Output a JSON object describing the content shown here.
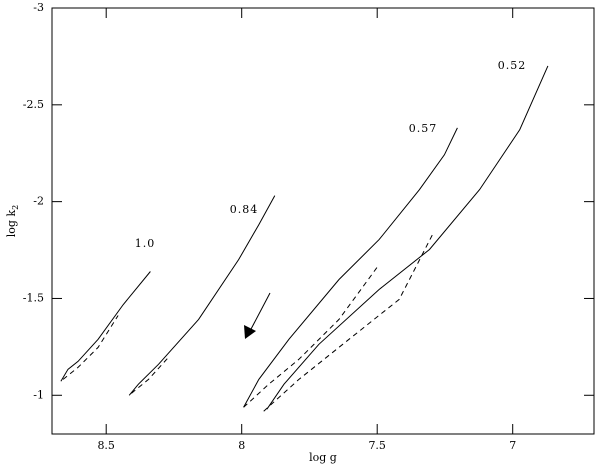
{
  "chart_data": {
    "type": "line",
    "xlabel": "log g",
    "ylabel": "log k",
    "ylabel_subscript": "2",
    "xlim": [
      8.7,
      6.7
    ],
    "ylim": [
      -0.8,
      -3
    ],
    "xticks": [
      8.5,
      8,
      7.5,
      7
    ],
    "yticks": [
      -1,
      -1.5,
      -2,
      -2.5,
      -3
    ],
    "color": "#000000",
    "series": [
      {
        "style": "solid",
        "x": [
          8.667,
          8.641,
          8.604,
          8.53,
          8.437,
          8.337
        ],
        "values": [
          -1.072,
          -1.134,
          -1.175,
          -1.289,
          -1.469,
          -1.639
        ]
      },
      {
        "style": "dashed",
        "x": [
          8.659,
          8.604,
          8.53,
          8.456
        ],
        "values": [
          -1.082,
          -1.144,
          -1.247,
          -1.412
        ]
      },
      {
        "style": "solid",
        "x": [
          8.415,
          8.381,
          8.307,
          8.159,
          8.011,
          7.937,
          7.878
        ],
        "values": [
          -1.0,
          -1.057,
          -1.16,
          -1.392,
          -1.701,
          -1.881,
          -2.031
        ]
      },
      {
        "style": "dashed",
        "x": [
          8.407,
          8.344,
          8.27
        ],
        "values": [
          -1.01,
          -1.082,
          -1.196
        ]
      },
      {
        "style": "solid",
        "x": [
          7.993,
          7.937,
          7.826,
          7.641,
          7.493,
          7.344,
          7.252,
          7.204
        ],
        "values": [
          -0.938,
          -1.082,
          -1.289,
          -1.598,
          -1.804,
          -2.062,
          -2.242,
          -2.381
        ]
      },
      {
        "style": "dashed",
        "x": [
          7.993,
          7.9,
          7.789,
          7.641,
          7.493
        ],
        "values": [
          -0.938,
          -1.057,
          -1.186,
          -1.392,
          -1.675
        ]
      },
      {
        "style": "solid",
        "x": [
          7.907,
          7.844,
          7.715,
          7.493,
          7.307,
          7.122,
          6.974,
          6.87
        ],
        "values": [
          -0.928,
          -1.057,
          -1.263,
          -1.546,
          -1.753,
          -2.062,
          -2.371,
          -2.701
        ]
      },
      {
        "style": "dashed",
        "x": [
          7.919,
          7.789,
          7.604,
          7.419,
          7.296
        ],
        "values": [
          -0.918,
          -1.082,
          -1.289,
          -1.495,
          -1.83
        ]
      }
    ],
    "annotations": [
      "1.0",
      "0.84",
      "0.57",
      "0.52"
    ]
  }
}
